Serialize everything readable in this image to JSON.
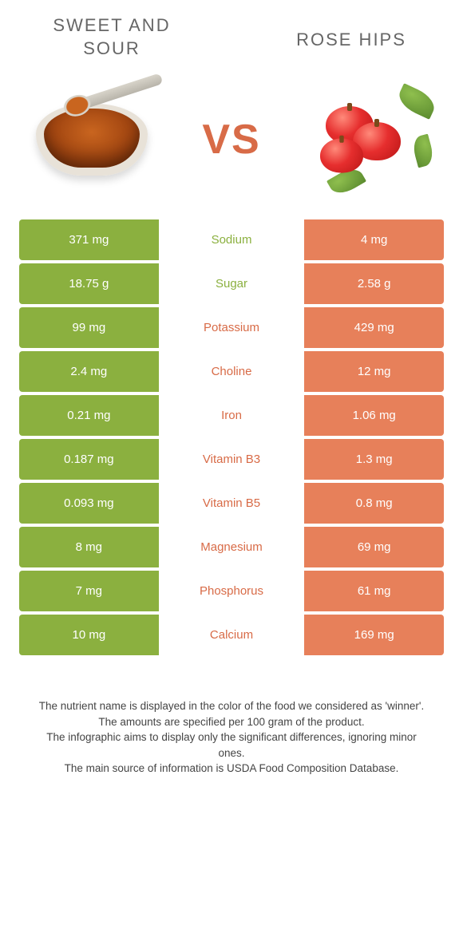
{
  "colors": {
    "left": "#8bb03f",
    "right": "#e7805a",
    "mid_green": "#8bb03f",
    "mid_orange": "#d86b47",
    "vs": "#d86b47",
    "title": "#6b6b6b"
  },
  "header": {
    "left_title": "SWEET AND\nSOUR",
    "right_title": "ROSE HIPS",
    "vs": "VS"
  },
  "rows": [
    {
      "left": "371 mg",
      "label": "Sodium",
      "right": "4 mg",
      "winner": "left"
    },
    {
      "left": "18.75 g",
      "label": "Sugar",
      "right": "2.58 g",
      "winner": "left"
    },
    {
      "left": "99 mg",
      "label": "Potassium",
      "right": "429 mg",
      "winner": "right"
    },
    {
      "left": "2.4 mg",
      "label": "Choline",
      "right": "12 mg",
      "winner": "right"
    },
    {
      "left": "0.21 mg",
      "label": "Iron",
      "right": "1.06 mg",
      "winner": "right"
    },
    {
      "left": "0.187 mg",
      "label": "Vitamin B3",
      "right": "1.3 mg",
      "winner": "right"
    },
    {
      "left": "0.093 mg",
      "label": "Vitamin B5",
      "right": "0.8 mg",
      "winner": "right"
    },
    {
      "left": "8 mg",
      "label": "Magnesium",
      "right": "69 mg",
      "winner": "right"
    },
    {
      "left": "7 mg",
      "label": "Phosphorus",
      "right": "61 mg",
      "winner": "right"
    },
    {
      "left": "10 mg",
      "label": "Calcium",
      "right": "169 mg",
      "winner": "right"
    }
  ],
  "footnotes": [
    "The nutrient name is displayed in the color of the food we considered as 'winner'.",
    "The amounts are specified per 100 gram of the product.",
    "The infographic aims to display only the significant differences, ignoring minor ones.",
    "The main source of information is USDA Food Composition Database."
  ]
}
